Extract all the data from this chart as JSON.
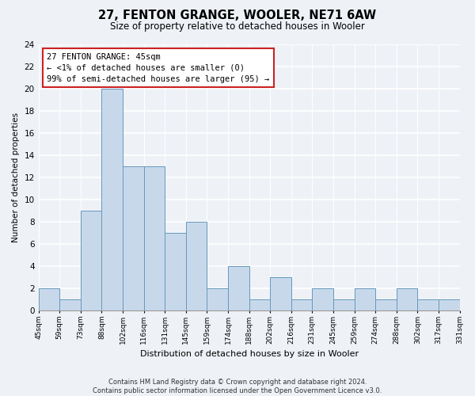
{
  "title": "27, FENTON GRANGE, WOOLER, NE71 6AW",
  "subtitle": "Size of property relative to detached houses in Wooler",
  "xlabel": "Distribution of detached houses by size in Wooler",
  "ylabel": "Number of detached properties",
  "bar_color": "#c8d8eb",
  "bar_edge_color": "#6699bb",
  "categories": [
    "45sqm",
    "59sqm",
    "73sqm",
    "88sqm",
    "102sqm",
    "116sqm",
    "131sqm",
    "145sqm",
    "159sqm",
    "174sqm",
    "188sqm",
    "202sqm",
    "216sqm",
    "231sqm",
    "245sqm",
    "259sqm",
    "274sqm",
    "288sqm",
    "302sqm",
    "317sqm",
    "331sqm"
  ],
  "values": [
    2,
    1,
    9,
    20,
    13,
    13,
    7,
    8,
    2,
    4,
    1,
    3,
    1,
    2,
    1,
    2,
    1,
    2,
    1,
    1
  ],
  "ylim": [
    0,
    24
  ],
  "yticks": [
    0,
    2,
    4,
    6,
    8,
    10,
    12,
    14,
    16,
    18,
    20,
    22,
    24
  ],
  "annotation_line1": "27 FENTON GRANGE: 45sqm",
  "annotation_line2": "← <1% of detached houses are smaller (0)",
  "annotation_line3": "99% of semi-detached houses are larger (95) →",
  "annotation_box_color": "#cc2222",
  "footer_line1": "Contains HM Land Registry data © Crown copyright and database right 2024.",
  "footer_line2": "Contains public sector information licensed under the Open Government Licence v3.0.",
  "background_color": "#eef2f7",
  "grid_color": "#ffffff"
}
